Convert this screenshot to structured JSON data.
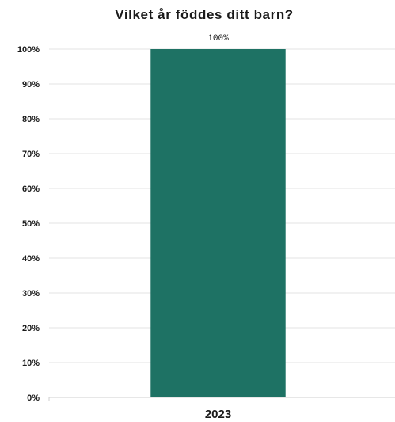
{
  "chart_data": {
    "type": "bar",
    "title": "Vilket år föddes ditt barn?",
    "categories": [
      "2023"
    ],
    "values": [
      100
    ],
    "data_labels": [
      "100%"
    ],
    "ylim": [
      0,
      100
    ],
    "yticks": [
      0,
      10,
      20,
      30,
      40,
      50,
      60,
      70,
      80,
      90,
      100
    ],
    "ytick_labels": [
      "0%",
      "10%",
      "20%",
      "30%",
      "40%",
      "50%",
      "60%",
      "70%",
      "80%",
      "90%",
      "100%"
    ],
    "xlabel": "",
    "ylabel": "",
    "grid": true,
    "legend": "none",
    "colors": {
      "bar": "#1e7264",
      "grid": "#e3e3e3",
      "text": "#1a1a1a"
    }
  }
}
